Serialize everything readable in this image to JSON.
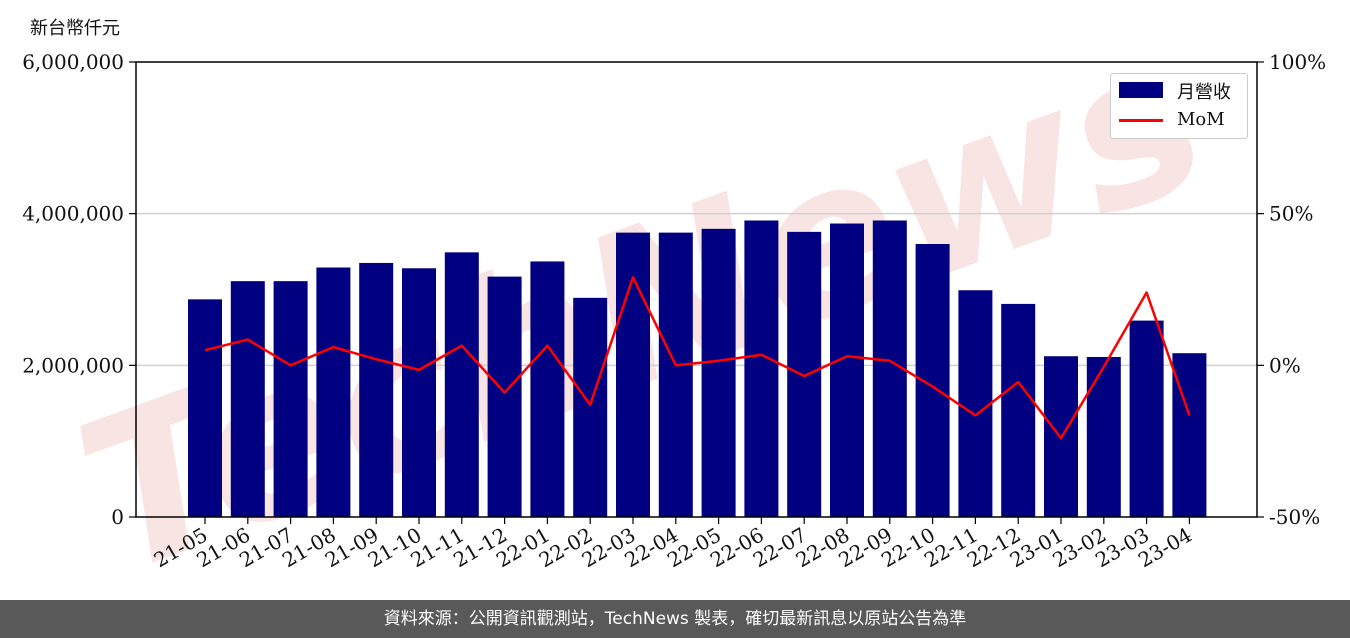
{
  "unit_label": "新台幣仟元",
  "footer_text": "資料來源：公開資訊觀測站，TechNews 製表，確切最新訊息以原站公告為準",
  "watermark": "TechNews",
  "colors": {
    "bar": "#000080",
    "line": "#ff0000",
    "grid": "#d0d0d0",
    "footer_bg": "#595959",
    "watermark": "#f2c4c4"
  },
  "chart_data": {
    "type": "bar",
    "categories": [
      "21-05",
      "21-06",
      "21-07",
      "21-08",
      "21-09",
      "21-10",
      "21-11",
      "21-12",
      "22-01",
      "22-02",
      "22-03",
      "22-04",
      "22-05",
      "22-06",
      "22-07",
      "22-08",
      "22-09",
      "22-10",
      "22-11",
      "22-12",
      "23-01",
      "23-02",
      "23-03",
      "23-04"
    ],
    "series": [
      {
        "name": "月營收",
        "type": "bar",
        "axis": "left",
        "values": [
          2870000,
          3110000,
          3110000,
          3290000,
          3350000,
          3280000,
          3490000,
          3170000,
          3370000,
          2890000,
          3750000,
          3750000,
          3800000,
          3910000,
          3760000,
          3870000,
          3910000,
          3600000,
          2990000,
          2810000,
          2120000,
          2110000,
          2590000,
          2160000
        ]
      },
      {
        "name": "MoM",
        "type": "line",
        "axis": "right",
        "values": [
          5,
          8.5,
          0,
          6,
          2,
          -1.5,
          6.5,
          -9,
          6.5,
          -13,
          29,
          0,
          1.5,
          3.5,
          -3.5,
          3,
          1.5,
          -7,
          -16.5,
          -5.5,
          -24,
          -0.5,
          24,
          -16.5
        ]
      }
    ],
    "y_left": {
      "range": [
        0,
        6000000
      ],
      "ticks": [
        0,
        2000000,
        4000000,
        6000000
      ],
      "tick_labels": [
        "0",
        "2,000,000",
        "4,000,000",
        "6,000,000"
      ]
    },
    "y_right": {
      "range": [
        -50,
        100
      ],
      "ticks": [
        -50,
        0,
        50,
        100
      ],
      "tick_labels": [
        "-50%",
        "0%",
        "50%",
        "100%"
      ]
    },
    "grid": "horizontal",
    "legend_position": "top-right"
  }
}
